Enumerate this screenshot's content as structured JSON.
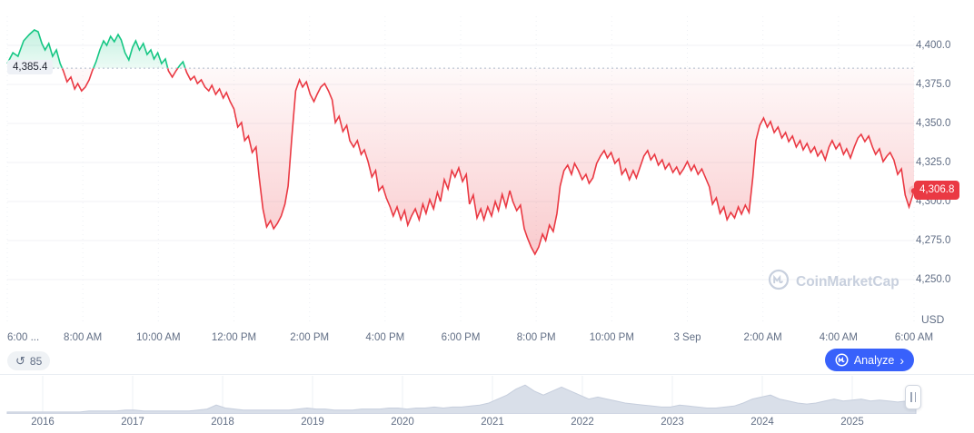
{
  "widgets": {
    "history_count": "85",
    "analyze_label": "Analyze",
    "analyze_chevron": "›",
    "watermark_text": "CoinMarketCap"
  },
  "chart_data": [
    {
      "type": "line",
      "title": "",
      "unit": "USD",
      "baseline": {
        "label": "4,385.4",
        "value": 4385.4
      },
      "current": {
        "label": "4,306.8",
        "value": 4306.8
      },
      "ylim": [
        4250,
        4400
      ],
      "grid": true,
      "colors": {
        "up": "#16c784",
        "down": "#ea3943",
        "baseline_dotted": "#aeb8c9",
        "badge_bg": "#ea3943",
        "grid": "#f0f2f5",
        "vgrid": "#edf0f4"
      },
      "y_ticks": [
        {
          "label": "4,400.0",
          "value": 4400
        },
        {
          "label": "4,375.0",
          "value": 4375
        },
        {
          "label": "4,350.0",
          "value": 4350
        },
        {
          "label": "4,325.0",
          "value": 4325
        },
        {
          "label": "4,300.0",
          "value": 4300
        },
        {
          "label": "4,275.0",
          "value": 4275
        },
        {
          "label": "4,250.0",
          "value": 4250
        }
      ],
      "x_ticks": [
        "6:00 ...",
        "8:00 AM",
        "10:00 AM",
        "12:00 PM",
        "2:00 PM",
        "4:00 PM",
        "6:00 PM",
        "8:00 PM",
        "10:00 PM",
        "3 Sep",
        "2:00 AM",
        "4:00 AM",
        "6:00 AM"
      ],
      "x_tick_minutes": [
        0,
        120,
        240,
        360,
        480,
        600,
        720,
        840,
        960,
        1080,
        1200,
        1320,
        1440
      ],
      "series": [
        [
          0,
          4388.4
        ],
        [
          9,
          4395.3
        ],
        [
          17,
          4393.0
        ],
        [
          26,
          4402.9
        ],
        [
          35,
          4407.0
        ],
        [
          43,
          4409.9
        ],
        [
          49,
          4408.7
        ],
        [
          55,
          4401.2
        ],
        [
          60,
          4397.1
        ],
        [
          66,
          4401.2
        ],
        [
          72,
          4393.0
        ],
        [
          78,
          4397.1
        ],
        [
          84,
          4388.4
        ],
        [
          89,
          4383.7
        ],
        [
          95,
          4376.7
        ],
        [
          101,
          4379.7
        ],
        [
          107,
          4372.1
        ],
        [
          112,
          4375.6
        ],
        [
          118,
          4370.9
        ],
        [
          124,
          4373.3
        ],
        [
          130,
          4377.9
        ],
        [
          135,
          4383.7
        ],
        [
          141,
          4389.5
        ],
        [
          147,
          4397.1
        ],
        [
          153,
          4402.9
        ],
        [
          158,
          4400.0
        ],
        [
          164,
          4405.8
        ],
        [
          170,
          4402.3
        ],
        [
          176,
          4407.0
        ],
        [
          181,
          4403.5
        ],
        [
          187,
          4395.3
        ],
        [
          193,
          4390.7
        ],
        [
          199,
          4398.8
        ],
        [
          204,
          4402.9
        ],
        [
          210,
          4397.1
        ],
        [
          216,
          4401.2
        ],
        [
          222,
          4394.2
        ],
        [
          228,
          4397.1
        ],
        [
          233,
          4391.3
        ],
        [
          239,
          4395.3
        ],
        [
          245,
          4388.4
        ],
        [
          251,
          4391.3
        ],
        [
          256,
          4383.7
        ],
        [
          262,
          4379.7
        ],
        [
          268,
          4383.7
        ],
        [
          274,
          4387.2
        ],
        [
          279,
          4389.5
        ],
        [
          285,
          4382.6
        ],
        [
          291,
          4377.9
        ],
        [
          297,
          4380.2
        ],
        [
          302,
          4375.6
        ],
        [
          308,
          4377.9
        ],
        [
          314,
          4373.3
        ],
        [
          320,
          4370.9
        ],
        [
          325,
          4374.4
        ],
        [
          331,
          4368.6
        ],
        [
          337,
          4372.1
        ],
        [
          343,
          4366.3
        ],
        [
          348,
          4369.8
        ],
        [
          354,
          4364.0
        ],
        [
          360,
          4359.3
        ],
        [
          366,
          4347.7
        ],
        [
          372,
          4350.6
        ],
        [
          377,
          4339.0
        ],
        [
          383,
          4341.9
        ],
        [
          389,
          4331.4
        ],
        [
          395,
          4334.9
        ],
        [
          400,
          4315.7
        ],
        [
          406,
          4295.3
        ],
        [
          412,
          4283.7
        ],
        [
          418,
          4287.8
        ],
        [
          423,
          4282.6
        ],
        [
          429,
          4286.0
        ],
        [
          435,
          4290.7
        ],
        [
          441,
          4298.3
        ],
        [
          446,
          4309.9
        ],
        [
          452,
          4341.9
        ],
        [
          458,
          4370.9
        ],
        [
          464,
          4377.9
        ],
        [
          469,
          4373.3
        ],
        [
          475,
          4376.7
        ],
        [
          481,
          4368.6
        ],
        [
          487,
          4364.0
        ],
        [
          492,
          4368.6
        ],
        [
          498,
          4373.3
        ],
        [
          504,
          4375.6
        ],
        [
          510,
          4370.9
        ],
        [
          516,
          4365.1
        ],
        [
          521,
          4350.6
        ],
        [
          527,
          4354.6
        ],
        [
          533,
          4344.8
        ],
        [
          539,
          4348.8
        ],
        [
          544,
          4339.0
        ],
        [
          550,
          4334.9
        ],
        [
          556,
          4339.0
        ],
        [
          562,
          4330.2
        ],
        [
          567,
          4333.1
        ],
        [
          573,
          4325.6
        ],
        [
          579,
          4315.7
        ],
        [
          585,
          4319.8
        ],
        [
          590,
          4307.0
        ],
        [
          596,
          4309.9
        ],
        [
          602,
          4302.3
        ],
        [
          608,
          4296.5
        ],
        [
          613,
          4290.7
        ],
        [
          619,
          4296.5
        ],
        [
          625,
          4288.4
        ],
        [
          631,
          4294.2
        ],
        [
          636,
          4284.9
        ],
        [
          642,
          4290.7
        ],
        [
          648,
          4295.3
        ],
        [
          654,
          4288.4
        ],
        [
          660,
          4298.3
        ],
        [
          665,
          4292.4
        ],
        [
          671,
          4301.2
        ],
        [
          677,
          4295.3
        ],
        [
          683,
          4305.8
        ],
        [
          688,
          4300.0
        ],
        [
          694,
          4314.0
        ],
        [
          700,
          4308.1
        ],
        [
          706,
          4319.8
        ],
        [
          711,
          4315.7
        ],
        [
          717,
          4321.5
        ],
        [
          723,
          4312.8
        ],
        [
          729,
          4317.4
        ],
        [
          734,
          4298.3
        ],
        [
          740,
          4304.1
        ],
        [
          746,
          4289.5
        ],
        [
          752,
          4295.3
        ],
        [
          757,
          4288.4
        ],
        [
          763,
          4296.5
        ],
        [
          769,
          4290.7
        ],
        [
          775,
          4300.0
        ],
        [
          780,
          4294.2
        ],
        [
          786,
          4304.6
        ],
        [
          792,
          4296.5
        ],
        [
          798,
          4307.0
        ],
        [
          803,
          4300.0
        ],
        [
          809,
          4294.2
        ],
        [
          815,
          4297.7
        ],
        [
          821,
          4282.6
        ],
        [
          826,
          4276.7
        ],
        [
          832,
          4270.9
        ],
        [
          838,
          4266.3
        ],
        [
          844,
          4270.9
        ],
        [
          850,
          4279.1
        ],
        [
          855,
          4275.0
        ],
        [
          861,
          4284.9
        ],
        [
          867,
          4280.8
        ],
        [
          873,
          4292.4
        ],
        [
          878,
          4309.9
        ],
        [
          884,
          4319.8
        ],
        [
          890,
          4323.3
        ],
        [
          896,
          4317.4
        ],
        [
          901,
          4324.4
        ],
        [
          907,
          4319.8
        ],
        [
          913,
          4314.0
        ],
        [
          919,
          4317.4
        ],
        [
          924,
          4311.6
        ],
        [
          930,
          4315.1
        ],
        [
          936,
          4324.4
        ],
        [
          942,
          4329.1
        ],
        [
          948,
          4332.6
        ],
        [
          953,
          4327.9
        ],
        [
          959,
          4331.4
        ],
        [
          965,
          4324.4
        ],
        [
          971,
          4327.3
        ],
        [
          976,
          4317.4
        ],
        [
          982,
          4320.9
        ],
        [
          988,
          4314.0
        ],
        [
          994,
          4319.8
        ],
        [
          999,
          4315.1
        ],
        [
          1005,
          4322.1
        ],
        [
          1011,
          4329.1
        ],
        [
          1017,
          4332.6
        ],
        [
          1022,
          4326.7
        ],
        [
          1028,
          4330.2
        ],
        [
          1034,
          4323.3
        ],
        [
          1040,
          4326.7
        ],
        [
          1045,
          4320.9
        ],
        [
          1051,
          4324.4
        ],
        [
          1057,
          4318.6
        ],
        [
          1063,
          4322.1
        ],
        [
          1068,
          4317.4
        ],
        [
          1074,
          4320.9
        ],
        [
          1080,
          4325.6
        ],
        [
          1086,
          4319.8
        ],
        [
          1091,
          4323.3
        ],
        [
          1097,
          4317.4
        ],
        [
          1103,
          4320.9
        ],
        [
          1109,
          4315.1
        ],
        [
          1115,
          4309.3
        ],
        [
          1120,
          4298.3
        ],
        [
          1126,
          4302.3
        ],
        [
          1132,
          4292.4
        ],
        [
          1138,
          4296.5
        ],
        [
          1143,
          4288.4
        ],
        [
          1149,
          4293.0
        ],
        [
          1155,
          4289.5
        ],
        [
          1161,
          4296.5
        ],
        [
          1166,
          4291.9
        ],
        [
          1172,
          4297.7
        ],
        [
          1178,
          4293.0
        ],
        [
          1184,
          4315.7
        ],
        [
          1189,
          4339.0
        ],
        [
          1195,
          4348.8
        ],
        [
          1201,
          4353.5
        ],
        [
          1207,
          4347.7
        ],
        [
          1212,
          4351.2
        ],
        [
          1218,
          4344.2
        ],
        [
          1224,
          4347.7
        ],
        [
          1230,
          4340.7
        ],
        [
          1236,
          4344.2
        ],
        [
          1241,
          4338.4
        ],
        [
          1247,
          4341.9
        ],
        [
          1253,
          4334.9
        ],
        [
          1259,
          4339.0
        ],
        [
          1264,
          4333.1
        ],
        [
          1270,
          4337.2
        ],
        [
          1276,
          4331.4
        ],
        [
          1282,
          4334.9
        ],
        [
          1287,
          4329.1
        ],
        [
          1293,
          4332.6
        ],
        [
          1299,
          4326.7
        ],
        [
          1305,
          4334.9
        ],
        [
          1310,
          4339.0
        ],
        [
          1316,
          4333.7
        ],
        [
          1322,
          4337.2
        ],
        [
          1328,
          4330.2
        ],
        [
          1333,
          4333.7
        ],
        [
          1339,
          4327.9
        ],
        [
          1345,
          4334.9
        ],
        [
          1351,
          4340.7
        ],
        [
          1356,
          4343.0
        ],
        [
          1362,
          4338.4
        ],
        [
          1368,
          4341.9
        ],
        [
          1374,
          4334.9
        ],
        [
          1379,
          4330.2
        ],
        [
          1385,
          4333.7
        ],
        [
          1391,
          4325.6
        ],
        [
          1397,
          4329.1
        ],
        [
          1402,
          4331.4
        ],
        [
          1408,
          4326.7
        ],
        [
          1414,
          4317.4
        ],
        [
          1420,
          4320.9
        ],
        [
          1426,
          4304.1
        ],
        [
          1432,
          4296.5
        ],
        [
          1440,
          4306.8
        ]
      ]
    },
    {
      "type": "area",
      "title": "timeline-brush",
      "years": [
        "2016",
        "2017",
        "2018",
        "2019",
        "2020",
        "2021",
        "2022",
        "2023",
        "2024",
        "2025"
      ],
      "colors": {
        "fill": "#d9dfe9",
        "stroke": "#c6cedd",
        "grid": "#eef1f5"
      },
      "values": [
        1,
        1,
        1,
        1,
        1,
        1,
        1,
        1,
        1,
        2,
        2,
        2,
        2,
        3,
        3,
        2,
        2,
        2,
        2,
        2,
        2,
        3,
        4,
        8,
        5,
        4,
        3,
        3,
        3,
        3,
        3,
        3,
        4,
        5,
        4,
        4,
        3,
        3,
        3,
        4,
        4,
        4,
        5,
        5,
        4,
        5,
        5,
        6,
        5,
        6,
        6,
        7,
        8,
        10,
        14,
        18,
        24,
        28,
        22,
        18,
        22,
        26,
        22,
        18,
        14,
        16,
        14,
        12,
        10,
        9,
        8,
        7,
        6,
        6,
        8,
        7,
        6,
        5,
        5,
        6,
        7,
        10,
        14,
        16,
        18,
        14,
        12,
        10,
        9,
        10,
        12,
        14,
        12,
        13,
        14,
        12,
        13,
        12,
        11,
        12,
        10
      ]
    }
  ]
}
